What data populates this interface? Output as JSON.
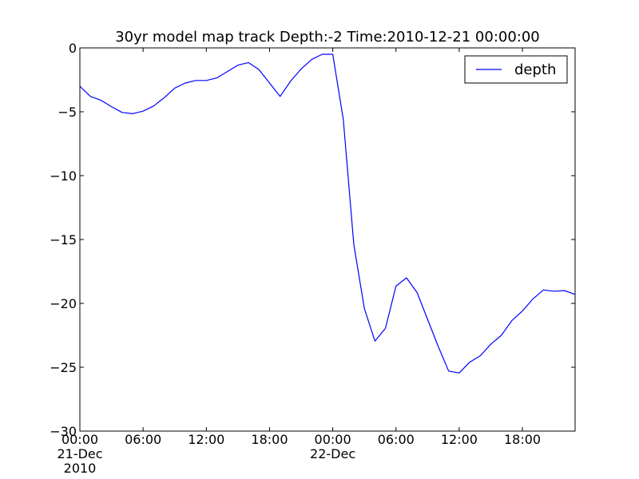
{
  "chart_data": {
    "type": "line",
    "title": "30yr model map track Depth:-2 Time:2010-12-21 00:00:00",
    "xlabel": "",
    "ylabel": "",
    "xlim": [
      "2010-12-21 00:00",
      "2010-12-22 23:00"
    ],
    "ylim": [
      -30,
      0
    ],
    "grid": false,
    "legend_position": "top-right",
    "colors": {
      "series": "#0000ff",
      "axes": "#000000",
      "background": "#ffffff"
    },
    "x_ticks": [
      {
        "value": "2010-12-21 00:00",
        "lines": [
          "00:00",
          "21-Dec",
          "2010"
        ]
      },
      {
        "value": "2010-12-21 06:00",
        "lines": [
          "06:00"
        ]
      },
      {
        "value": "2010-12-21 12:00",
        "lines": [
          "12:00"
        ]
      },
      {
        "value": "2010-12-21 18:00",
        "lines": [
          "18:00"
        ]
      },
      {
        "value": "2010-12-22 00:00",
        "lines": [
          "00:00",
          "22-Dec"
        ]
      },
      {
        "value": "2010-12-22 06:00",
        "lines": [
          "06:00"
        ]
      },
      {
        "value": "2010-12-22 12:00",
        "lines": [
          "12:00"
        ]
      },
      {
        "value": "2010-12-22 18:00",
        "lines": [
          "18:00"
        ]
      }
    ],
    "y_ticks": [
      {
        "value": 0,
        "label": "0"
      },
      {
        "value": -5,
        "label": "−5"
      },
      {
        "value": -10,
        "label": "−10"
      },
      {
        "value": -15,
        "label": "−15"
      },
      {
        "value": -20,
        "label": "−20"
      },
      {
        "value": -25,
        "label": "−25"
      },
      {
        "value": -30,
        "label": "−30"
      }
    ],
    "series": [
      {
        "name": "depth",
        "x": [
          "2010-12-21 00:00",
          "2010-12-21 01:00",
          "2010-12-21 02:00",
          "2010-12-21 03:00",
          "2010-12-21 04:00",
          "2010-12-21 05:00",
          "2010-12-21 06:00",
          "2010-12-21 07:00",
          "2010-12-21 08:00",
          "2010-12-21 09:00",
          "2010-12-21 10:00",
          "2010-12-21 11:00",
          "2010-12-21 12:00",
          "2010-12-21 13:00",
          "2010-12-21 14:00",
          "2010-12-21 15:00",
          "2010-12-21 16:00",
          "2010-12-21 17:00",
          "2010-12-21 18:00",
          "2010-12-21 19:00",
          "2010-12-21 20:00",
          "2010-12-21 21:00",
          "2010-12-21 22:00",
          "2010-12-21 23:00",
          "2010-12-22 00:00",
          "2010-12-22 01:00",
          "2010-12-22 02:00",
          "2010-12-22 03:00",
          "2010-12-22 04:00",
          "2010-12-22 05:00",
          "2010-12-22 06:00",
          "2010-12-22 07:00",
          "2010-12-22 08:00",
          "2010-12-22 09:00",
          "2010-12-22 10:00",
          "2010-12-22 11:00",
          "2010-12-22 12:00",
          "2010-12-22 13:00",
          "2010-12-22 14:00",
          "2010-12-22 15:00",
          "2010-12-22 16:00",
          "2010-12-22 17:00",
          "2010-12-22 18:00",
          "2010-12-22 19:00",
          "2010-12-22 20:00",
          "2010-12-22 21:00",
          "2010-12-22 22:00",
          "2010-12-22 23:00"
        ],
        "y": [
          -3.0,
          -3.8,
          -4.1,
          -4.6,
          -5.05,
          -5.15,
          -4.95,
          -4.55,
          -3.9,
          -3.15,
          -2.75,
          -2.55,
          -2.55,
          -2.35,
          -1.85,
          -1.35,
          -1.15,
          -1.7,
          -2.75,
          -3.8,
          -2.6,
          -1.65,
          -0.9,
          -0.5,
          -0.5,
          -5.6,
          -15.4,
          -20.4,
          -22.95,
          -21.95,
          -18.65,
          -18.0,
          -19.15,
          -21.25,
          -23.35,
          -25.3,
          -25.45,
          -24.6,
          -24.1,
          -23.2,
          -22.5,
          -21.35,
          -20.6,
          -19.65,
          -18.95,
          -19.05,
          -19.0,
          -19.3
        ]
      }
    ]
  }
}
